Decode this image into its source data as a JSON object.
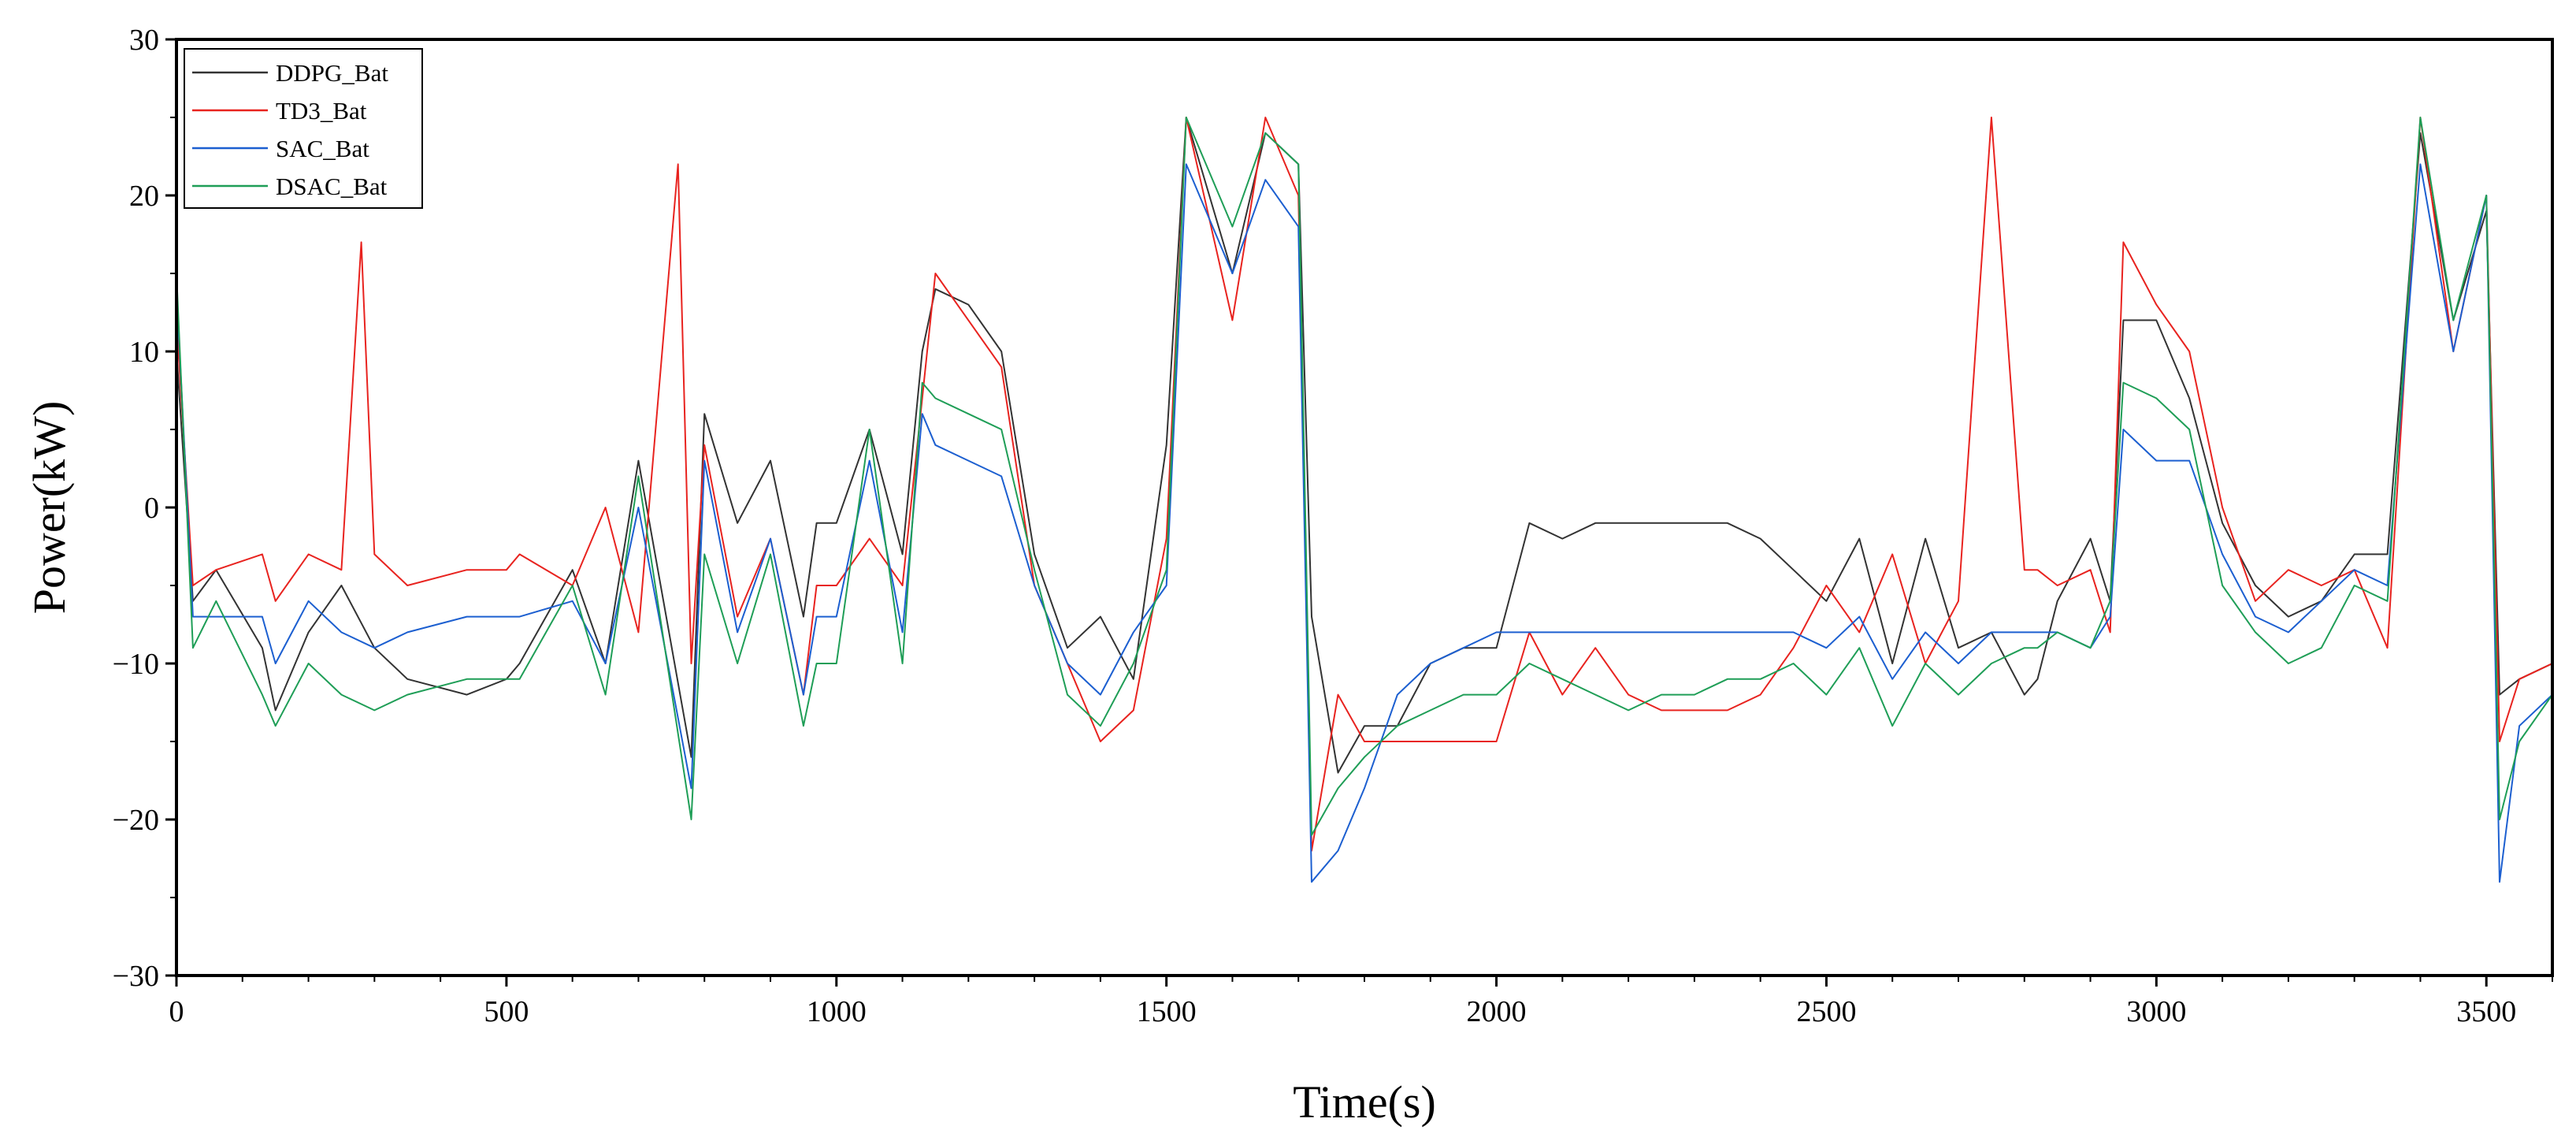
{
  "chart_data": {
    "type": "line",
    "title": "",
    "xlabel": "Time(s)",
    "ylabel": "Power(kW)",
    "xlim": [
      0,
      3600
    ],
    "ylim": [
      -30,
      30
    ],
    "xticks": [
      0,
      500,
      1000,
      1500,
      2000,
      2500,
      3000,
      3500
    ],
    "xtick_labels": [
      "0",
      "500",
      "1000",
      "1500",
      "2000",
      "2500",
      "3000",
      "3500"
    ],
    "yticks": [
      -30,
      -20,
      -10,
      0,
      10,
      20,
      30
    ],
    "ytick_labels": [
      "−30",
      "−20",
      "−10",
      "0",
      "10",
      "20",
      "30"
    ],
    "grid": false,
    "legend_position": "top-left",
    "series": [
      {
        "name": "DDPG_Bat",
        "color": "#333333",
        "x": [
          0,
          25,
          60,
          130,
          150,
          200,
          250,
          300,
          350,
          440,
          500,
          520,
          600,
          650,
          700,
          780,
          800,
          850,
          900,
          950,
          970,
          1000,
          1050,
          1100,
          1130,
          1150,
          1200,
          1250,
          1300,
          1350,
          1400,
          1450,
          1500,
          1530,
          1600,
          1650,
          1700,
          1720,
          1760,
          1800,
          1850,
          1900,
          1950,
          2000,
          2050,
          2100,
          2150,
          2200,
          2250,
          2300,
          2350,
          2400,
          2450,
          2500,
          2550,
          2600,
          2650,
          2700,
          2750,
          2800,
          2820,
          2850,
          2900,
          2930,
          2950,
          3000,
          3050,
          3100,
          3150,
          3200,
          3250,
          3300,
          3350,
          3400,
          3450,
          3500,
          3520,
          3550,
          3600
        ],
        "y": [
          10,
          -6,
          -4,
          -9,
          -13,
          -8,
          -5,
          -9,
          -11,
          -12,
          -11,
          -10,
          -4,
          -10,
          3,
          -16,
          6,
          -1,
          3,
          -7,
          -1,
          -1,
          5,
          -3,
          10,
          14,
          13,
          10,
          -3,
          -9,
          -7,
          -11,
          4,
          25,
          15,
          24,
          22,
          -7,
          -17,
          -14,
          -14,
          -10,
          -9,
          -9,
          -1,
          -2,
          -1,
          -1,
          -1,
          -1,
          -1,
          -2,
          -4,
          -6,
          -2,
          -10,
          -2,
          -9,
          -8,
          -12,
          -11,
          -6,
          -2,
          -6,
          12,
          12,
          7,
          -1,
          -5,
          -7,
          -6,
          -3,
          -3,
          24,
          12,
          19,
          -12,
          -11,
          -10
        ]
      },
      {
        "name": "TD3_Bat",
        "color": "#e8231f",
        "x": [
          0,
          25,
          60,
          130,
          150,
          200,
          250,
          280,
          300,
          350,
          440,
          500,
          520,
          600,
          650,
          700,
          760,
          780,
          800,
          850,
          900,
          950,
          970,
          1000,
          1050,
          1100,
          1130,
          1150,
          1200,
          1250,
          1300,
          1350,
          1400,
          1450,
          1500,
          1530,
          1600,
          1650,
          1700,
          1720,
          1760,
          1800,
          1850,
          1900,
          1950,
          2000,
          2050,
          2100,
          2150,
          2200,
          2250,
          2300,
          2350,
          2400,
          2450,
          2500,
          2550,
          2600,
          2650,
          2700,
          2750,
          2800,
          2820,
          2850,
          2900,
          2930,
          2950,
          3000,
          3050,
          3100,
          3150,
          3200,
          3250,
          3300,
          3350,
          3400,
          3450,
          3500,
          3520,
          3550,
          3600
        ],
        "y": [
          12,
          -5,
          -4,
          -3,
          -6,
          -3,
          -4,
          17,
          -3,
          -5,
          -4,
          -4,
          -3,
          -5,
          0,
          -8,
          22,
          -10,
          4,
          -7,
          -2,
          -12,
          -5,
          -5,
          -2,
          -5,
          7,
          15,
          12,
          9,
          -5,
          -10,
          -15,
          -13,
          -2,
          25,
          12,
          25,
          20,
          -22,
          -12,
          -15,
          -15,
          -15,
          -15,
          -15,
          -8,
          -12,
          -9,
          -12,
          -13,
          -13,
          -13,
          -12,
          -9,
          -5,
          -8,
          -3,
          -10,
          -6,
          25,
          -4,
          -4,
          -5,
          -4,
          -8,
          17,
          13,
          10,
          0,
          -6,
          -4,
          -5,
          -4,
          -9,
          25,
          10,
          20,
          -15,
          -11,
          -10
        ]
      },
      {
        "name": "SAC_Bat",
        "color": "#1c5fd0",
        "x": [
          0,
          25,
          60,
          130,
          150,
          200,
          250,
          300,
          350,
          440,
          500,
          520,
          600,
          650,
          700,
          780,
          800,
          850,
          900,
          950,
          970,
          1000,
          1050,
          1100,
          1130,
          1150,
          1200,
          1250,
          1300,
          1350,
          1400,
          1450,
          1500,
          1530,
          1600,
          1650,
          1700,
          1720,
          1760,
          1800,
          1850,
          1900,
          1950,
          2000,
          2050,
          2100,
          2150,
          2200,
          2250,
          2300,
          2350,
          2400,
          2450,
          2500,
          2550,
          2600,
          2650,
          2700,
          2750,
          2800,
          2820,
          2850,
          2900,
          2930,
          2950,
          3000,
          3050,
          3100,
          3150,
          3200,
          3250,
          3300,
          3350,
          3400,
          3450,
          3500,
          3520,
          3550,
          3600
        ],
        "y": [
          14,
          -7,
          -7,
          -7,
          -10,
          -6,
          -8,
          -9,
          -8,
          -7,
          -7,
          -7,
          -6,
          -10,
          0,
          -18,
          3,
          -8,
          -2,
          -12,
          -7,
          -7,
          3,
          -8,
          6,
          4,
          3,
          2,
          -5,
          -10,
          -12,
          -8,
          -5,
          22,
          15,
          21,
          18,
          -24,
          -22,
          -18,
          -12,
          -10,
          -9,
          -8,
          -8,
          -8,
          -8,
          -8,
          -8,
          -8,
          -8,
          -8,
          -8,
          -9,
          -7,
          -11,
          -8,
          -10,
          -8,
          -8,
          -8,
          -8,
          -9,
          -7,
          5,
          3,
          3,
          -3,
          -7,
          -8,
          -6,
          -4,
          -5,
          22,
          10,
          20,
          -24,
          -14,
          -12
        ]
      },
      {
        "name": "DSAC_Bat",
        "color": "#1f9e57",
        "x": [
          0,
          25,
          60,
          130,
          150,
          200,
          250,
          300,
          350,
          440,
          500,
          520,
          600,
          650,
          700,
          780,
          800,
          850,
          900,
          950,
          970,
          1000,
          1050,
          1100,
          1130,
          1150,
          1200,
          1250,
          1300,
          1350,
          1400,
          1450,
          1500,
          1530,
          1600,
          1650,
          1700,
          1720,
          1760,
          1800,
          1850,
          1900,
          1950,
          2000,
          2050,
          2100,
          2150,
          2200,
          2250,
          2300,
          2350,
          2400,
          2450,
          2500,
          2550,
          2600,
          2650,
          2700,
          2750,
          2800,
          2820,
          2850,
          2900,
          2930,
          2950,
          3000,
          3050,
          3100,
          3150,
          3200,
          3250,
          3300,
          3350,
          3400,
          3450,
          3500,
          3520,
          3550,
          3600
        ],
        "y": [
          15,
          -9,
          -6,
          -12,
          -14,
          -10,
          -12,
          -13,
          -12,
          -11,
          -11,
          -11,
          -5,
          -12,
          2,
          -20,
          -3,
          -10,
          -3,
          -14,
          -10,
          -10,
          5,
          -10,
          8,
          7,
          6,
          5,
          -4,
          -12,
          -14,
          -10,
          -4,
          25,
          18,
          24,
          22,
          -21,
          -18,
          -16,
          -14,
          -13,
          -12,
          -12,
          -10,
          -11,
          -12,
          -13,
          -12,
          -12,
          -11,
          -11,
          -10,
          -12,
          -9,
          -14,
          -10,
          -12,
          -10,
          -9,
          -9,
          -8,
          -9,
          -6,
          8,
          7,
          5,
          -5,
          -8,
          -10,
          -9,
          -5,
          -6,
          25,
          12,
          20,
          -20,
          -15,
          -12
        ]
      }
    ]
  }
}
